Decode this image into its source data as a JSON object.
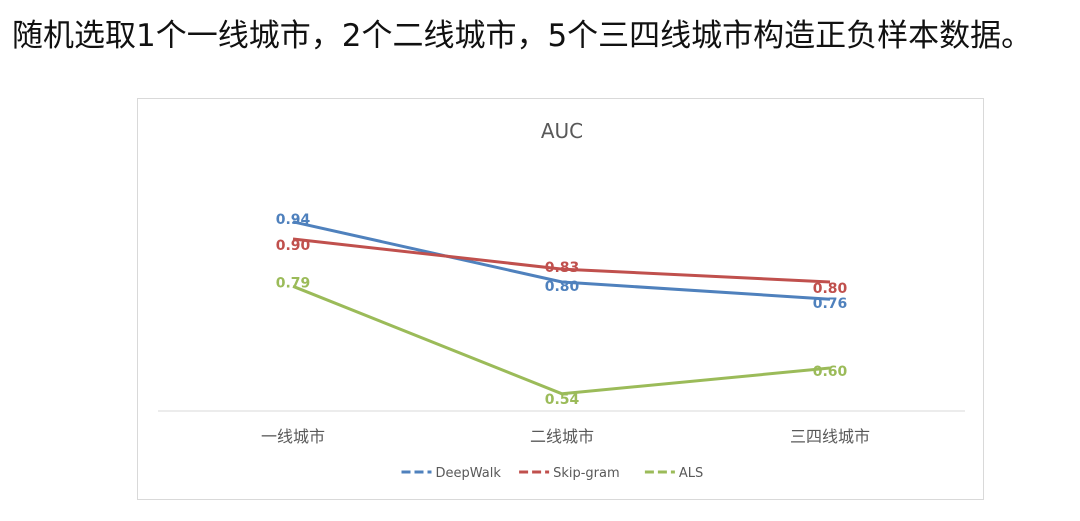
{
  "page": {
    "heading": "随机选取1个一线城市，2个二线城市，5个三四线城市构造正负样本数据。"
  },
  "chart_data": {
    "type": "line",
    "title": "AUC",
    "xlabel": "",
    "ylabel": "",
    "categories": [
      "一线城市",
      "二线城市",
      "三四线城市"
    ],
    "ylim": [
      0.5,
      1.0
    ],
    "grid": false,
    "legend_position": "bottom",
    "series": [
      {
        "name": "DeepWalk",
        "color": "#4f81bd",
        "values": [
          0.94,
          0.8,
          0.76
        ],
        "labels": [
          "0.94",
          "0.80",
          "0.76"
        ]
      },
      {
        "name": "Skip-gram",
        "color": "#c0504d",
        "values": [
          0.9,
          0.83,
          0.8
        ],
        "labels": [
          "0.90",
          "0.83",
          "0.80"
        ]
      },
      {
        "name": "ALS",
        "color": "#9bbb59",
        "values": [
          0.79,
          0.54,
          0.6
        ],
        "labels": [
          "0.79",
          "0.54",
          "0.60"
        ]
      }
    ]
  }
}
